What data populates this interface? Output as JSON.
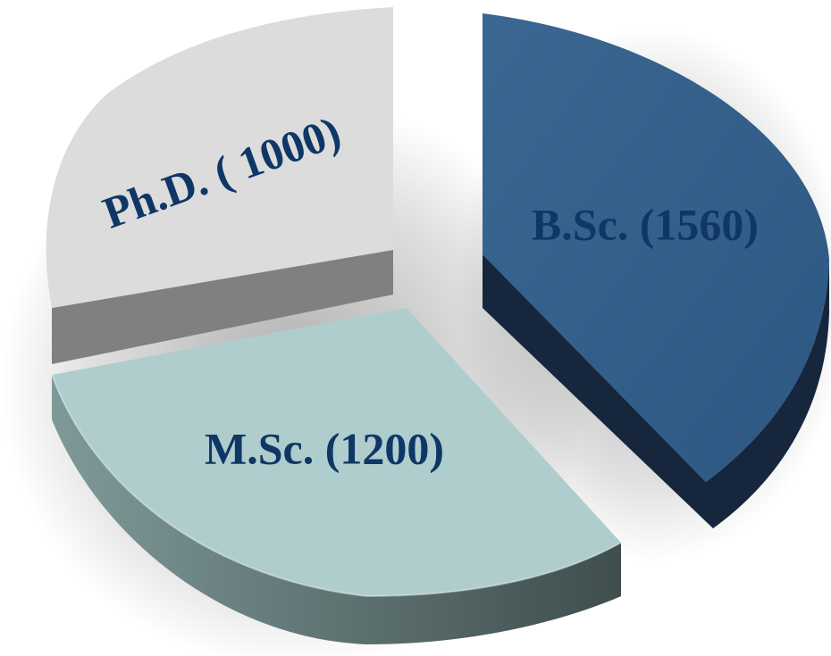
{
  "chart_data": {
    "type": "pie",
    "style": "3d-exploded",
    "slices": [
      {
        "label": "B.Sc. (1560)",
        "category": "B.Sc.",
        "value": 1560,
        "color": "#2e5d8a"
      },
      {
        "label": "M.Sc. (1200)",
        "category": "M.Sc.",
        "value": 1200,
        "color": "#b0cdcd"
      },
      {
        "label": "Ph.D. ( 1000)",
        "category": "Ph.D.",
        "value": 1000,
        "color": "#dcdcdc"
      }
    ],
    "colors": {
      "label_text": "#0f3766",
      "bsc_side": "#16263d",
      "msc_side_light": "#7f9999",
      "msc_side_dark": "#3f4d4d",
      "phd_side": "#808080"
    }
  }
}
